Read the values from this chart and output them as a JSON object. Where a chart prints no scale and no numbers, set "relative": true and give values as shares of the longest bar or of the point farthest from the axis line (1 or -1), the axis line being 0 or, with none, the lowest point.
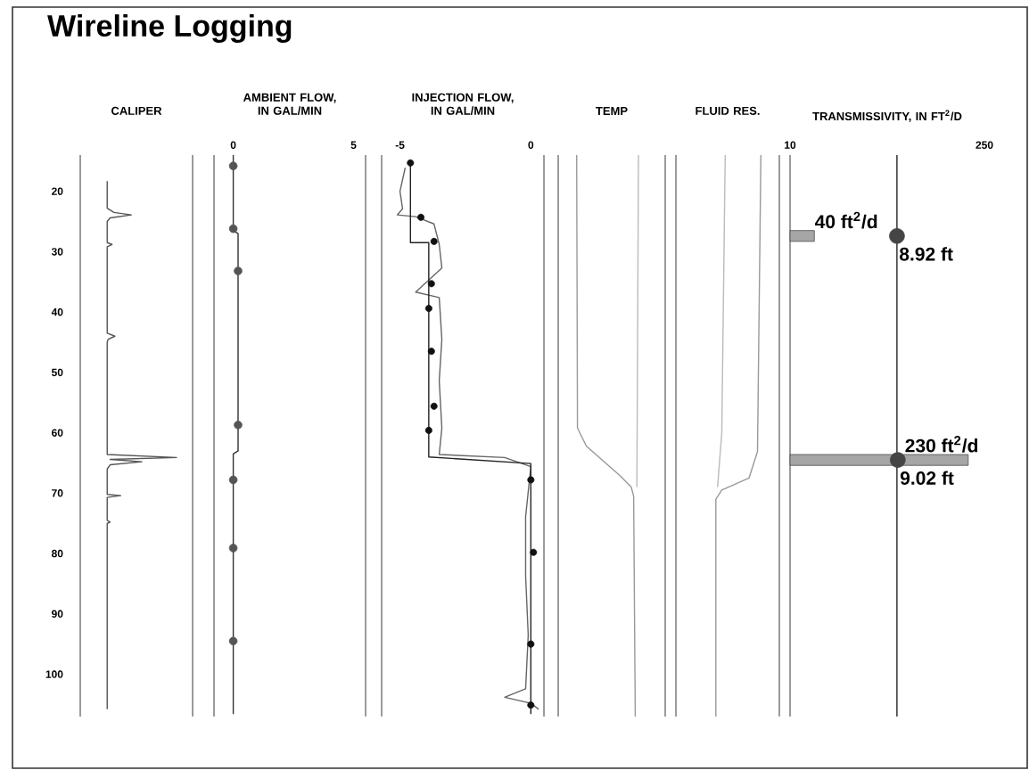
{
  "chart_data": [
    {
      "type": "line",
      "title": "Wireline Logging",
      "xlabel": "CALIPER",
      "orientation": "horizontal",
      "relative": true,
      "ylim": [
        107,
        14
      ],
      "yticks": [
        20,
        30,
        40,
        50,
        60,
        70,
        80,
        90,
        100
      ],
      "tick_labels": "y",
      "series": [
        {
          "x": [
            18.3,
            22.8,
            23.5,
            23.9,
            24.4,
            25,
            28.5,
            28.8,
            29.2,
            43.5,
            44,
            44.5,
            45,
            63.6,
            64.1,
            64.4,
            64.8,
            65.3,
            66,
            70.2,
            70.4,
            70.7,
            74.5,
            74.8,
            75,
            105.8
          ],
          "values": [
            0.28,
            0.28,
            0.35,
            0.53,
            0.31,
            0.28,
            0.28,
            0.33,
            0.28,
            0.28,
            0.36,
            0.29,
            0.28,
            0.28,
            1,
            0.31,
            0.64,
            0.31,
            0.28,
            0.28,
            0.42,
            0.28,
            0.28,
            0.31,
            0.28,
            0.28
          ],
          "color": "#555555"
        }
      ]
    },
    {
      "type": "line",
      "xlabel": "AMBIENT FLOW, IN GAL/MIN",
      "orientation": "horizontal",
      "xlim": [
        -0.8,
        5.5
      ],
      "xticks": [
        0,
        5
      ],
      "ylim": [
        107,
        14
      ],
      "tick_labels": "x",
      "series": [
        {
          "x": [
            14,
            26.5,
            27,
            63,
            63.5,
            106.6
          ],
          "values": [
            0,
            0,
            0.2,
            0.2,
            0,
            0
          ],
          "color": "#333333"
        },
        {
          "type": "scatter",
          "marker": "circle",
          "x": [
            15.8,
            26.2,
            33.2,
            58.7,
            67.8,
            79.1,
            94.5
          ],
          "values": [
            0,
            0,
            0.2,
            0.2,
            0,
            0,
            0
          ],
          "color": "#555555"
        }
      ]
    },
    {
      "type": "line",
      "xlabel": "INJECTION FLOW, IN GAL/MIN",
      "orientation": "horizontal",
      "xlim": [
        -5.7,
        0.5
      ],
      "xticks": [
        -5,
        0
      ],
      "ylim": [
        107,
        14
      ],
      "tick_labels": "x",
      "series": [
        {
          "x": [
            16.1,
            20,
            22.9,
            23.9,
            24.2,
            25.4,
            28.8,
            32.7,
            36.7,
            37.6,
            44.5,
            51.4,
            59.2,
            63.6,
            64.1,
            65.6,
            73.9,
            83.7,
            93.5,
            102.4,
            103.8,
            104.8,
            105.8
          ],
          "values": [
            -4.8,
            -5,
            -4.9,
            -5.1,
            -4.4,
            -3.7,
            -3.5,
            -3.4,
            -4.4,
            -3.5,
            -3.4,
            -3.5,
            -3.4,
            -3.5,
            -1,
            0,
            -0.2,
            -0.2,
            -0.1,
            -0.2,
            -1,
            0,
            0.3
          ],
          "color": "#666666"
        },
        {
          "x": [
            15.3,
            28.5,
            28.5,
            64,
            65.1,
            106.6
          ],
          "values": [
            -4.6,
            -4.6,
            -3.9,
            -3.9,
            0,
            0
          ],
          "color": "#222222"
        },
        {
          "type": "scatter",
          "marker": "circle",
          "x": [
            15.3,
            24.3,
            28.3,
            35.3,
            39.4,
            46.5,
            55.6,
            59.6,
            67.8,
            79.8,
            95,
            105.1
          ],
          "values": [
            -4.6,
            -4.2,
            -3.7,
            -3.8,
            -3.9,
            -3.8,
            -3.7,
            -3.9,
            0,
            0.1,
            0,
            0
          ],
          "color": "#111111"
        }
      ]
    },
    {
      "type": "line",
      "xlabel": "TEMP",
      "orientation": "horizontal",
      "relative": true,
      "ylim": [
        107,
        14
      ],
      "tick_labels": false,
      "series": [
        {
          "x": [
            14,
            59.2,
            62.2,
            67.1,
            69,
            70.5,
            107
          ],
          "values": [
            0.23,
            0.24,
            0.35,
            0.77,
            0.91,
            0.94,
            0.96
          ],
          "color": "#999999"
        },
        {
          "x": [
            14,
            69
          ],
          "values": [
            1,
            0.98
          ],
          "color": "#bbbbbb"
        }
      ]
    },
    {
      "type": "line",
      "xlabel": "FLUID RES.",
      "orientation": "horizontal",
      "relative": true,
      "ylim": [
        107,
        14
      ],
      "tick_labels": false,
      "series": [
        {
          "x": [
            14,
            63.1,
            67.5,
            69.5,
            71,
            107
          ],
          "values": [
            1,
            0.96,
            0.86,
            0.54,
            0.47,
            0.47
          ],
          "color": "#999999"
        },
        {
          "x": [
            14,
            60,
            69
          ],
          "values": [
            0.58,
            0.54,
            0.49
          ],
          "color": "#bbbbbb"
        }
      ]
    },
    {
      "type": "bar",
      "xlabel": "TRANSMISSIVITY, IN FT$^{2}$/D",
      "orientation": "horizontal",
      "xlim": [
        10,
        250
      ],
      "xticks": [
        10,
        250
      ],
      "ylim": [
        107,
        14
      ],
      "tick_labels": "x",
      "ref_lines": [
        {
          "axis": "x",
          "value": 142
        }
      ],
      "annotations": [
        {
          "text": "8.92 ft",
          "x": 142,
          "y": 27.4
        },
        {
          "text": "9.02 ft",
          "x": 143,
          "y": 64.5
        }
      ],
      "series": [
        {
          "x": [
            27.4,
            64.5
          ],
          "values": [
            40,
            230
          ],
          "value_labels": [
            "40 ft$^{2}$/d",
            "230 ft$^{2}$/d"
          ],
          "color": "#a6a6a6"
        },
        {
          "type": "scatter",
          "marker": "circle",
          "x": [
            27.4,
            64.5
          ],
          "values": [
            142,
            143
          ],
          "color": "#454545"
        }
      ]
    }
  ]
}
